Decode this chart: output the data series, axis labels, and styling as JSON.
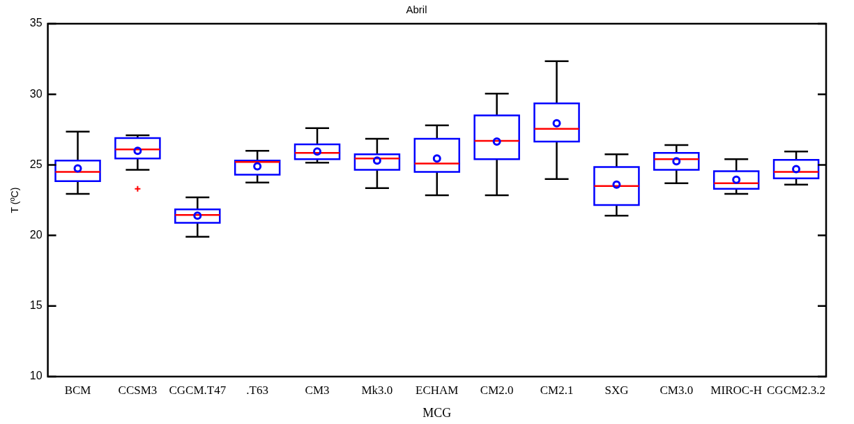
{
  "chart_data": {
    "type": "box",
    "title": "Abril",
    "xlabel": "MCG",
    "ylabel": "T (ºC)",
    "categories": [
      "BCM",
      "CCSM3",
      "CGCM.T47",
      ".T63",
      "CM3",
      "Mk3.0",
      "ECHAM",
      "CM2.0",
      "CM2.1",
      "SXG",
      "CM3.0",
      "MIROC-H",
      "CGCM2.3.2"
    ],
    "color": "#0000ff",
    "boxes": [
      {
        "low": 22.95,
        "q1": 23.85,
        "median": 24.5,
        "q3": 25.3,
        "high": 27.35,
        "mean": 24.75
      },
      {
        "low": 24.65,
        "q1": 25.45,
        "median": 26.1,
        "q3": 26.9,
        "high": 27.1,
        "mean": 26.0,
        "outliers": [
          23.3
        ]
      },
      {
        "low": 19.9,
        "q1": 20.9,
        "median": 21.45,
        "q3": 21.85,
        "high": 22.7,
        "mean": 21.4
      },
      {
        "low": 23.75,
        "q1": 24.3,
        "median": 25.2,
        "q3": 25.3,
        "high": 26.0,
        "mean": 24.9
      },
      {
        "low": 25.15,
        "q1": 25.4,
        "median": 25.85,
        "q3": 26.45,
        "high": 27.6,
        "mean": 25.95
      },
      {
        "low": 23.35,
        "q1": 24.65,
        "median": 25.45,
        "q3": 25.75,
        "high": 26.85,
        "mean": 25.3
      },
      {
        "low": 22.85,
        "q1": 24.5,
        "median": 25.1,
        "q3": 26.85,
        "high": 27.8,
        "mean": 25.45
      },
      {
        "low": 22.85,
        "q1": 25.4,
        "median": 26.7,
        "q3": 28.5,
        "high": 30.05,
        "mean": 26.65
      },
      {
        "low": 24.0,
        "q1": 26.65,
        "median": 27.55,
        "q3": 29.35,
        "high": 32.35,
        "mean": 27.95
      },
      {
        "low": 21.4,
        "q1": 22.15,
        "median": 23.5,
        "q3": 24.85,
        "high": 25.75,
        "mean": 23.6
      },
      {
        "low": 23.7,
        "q1": 24.65,
        "median": 25.4,
        "q3": 25.85,
        "high": 26.4,
        "mean": 25.25
      },
      {
        "low": 22.95,
        "q1": 23.3,
        "median": 23.7,
        "q3": 24.55,
        "high": 25.4,
        "mean": 23.95
      },
      {
        "low": 23.6,
        "q1": 24.05,
        "median": 24.5,
        "q3": 25.35,
        "high": 25.95,
        "mean": 24.7
      }
    ],
    "ylim": [
      10,
      35
    ],
    "yticks": [
      10,
      15,
      20,
      25,
      30,
      35
    ],
    "grid": false,
    "legend": false
  }
}
